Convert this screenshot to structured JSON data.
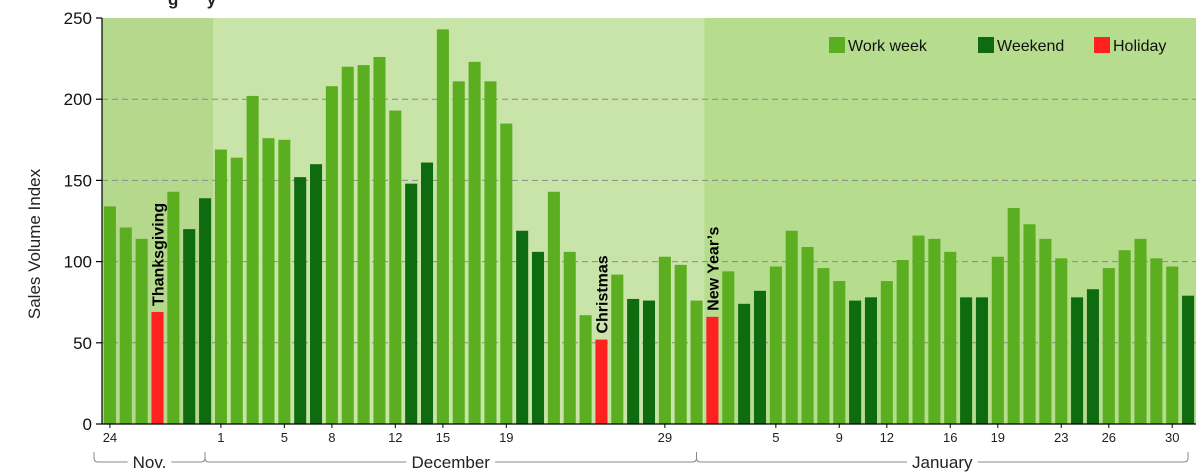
{
  "chart_data": {
    "type": "bar",
    "title": "g      y",
    "ylabel": "Sales Volume Index",
    "ylim": [
      0,
      250
    ],
    "yticks": [
      0,
      50,
      100,
      150,
      200,
      250
    ],
    "grid": "dashed horizontal",
    "legend_position": "top-right",
    "colors": {
      "work_week": "#5aae1f",
      "weekend": "#0f6b0f",
      "holiday": "#ff2020",
      "period_nov": "#b4d88c",
      "period_dec": "#c8e4a8",
      "period_jan": "#b6dc8e"
    },
    "legend": [
      {
        "key": "work_week",
        "label": "Work week"
      },
      {
        "key": "weekend",
        "label": "Weekend"
      },
      {
        "key": "holiday",
        "label": "Holiday"
      }
    ],
    "x_tick_labels": [
      {
        "label": "24",
        "day_index": 0
      },
      {
        "label": "1",
        "day_index": 7
      },
      {
        "label": "5",
        "day_index": 11
      },
      {
        "label": "8",
        "day_index": 14
      },
      {
        "label": "12",
        "day_index": 18
      },
      {
        "label": "15",
        "day_index": 21
      },
      {
        "label": "19",
        "day_index": 25
      },
      {
        "label": "29",
        "day_index": 35
      },
      {
        "label": "5",
        "day_index": 42
      },
      {
        "label": "9",
        "day_index": 46
      },
      {
        "label": "12",
        "day_index": 49
      },
      {
        "label": "16",
        "day_index": 53
      },
      {
        "label": "19",
        "day_index": 56
      },
      {
        "label": "23",
        "day_index": 60
      },
      {
        "label": "26",
        "day_index": 63
      },
      {
        "label": "30",
        "day_index": 67
      }
    ],
    "periods": [
      {
        "label": "Nov.",
        "start_index": 0,
        "end_index": 6,
        "color_key": "period_nov"
      },
      {
        "label": "December",
        "start_index": 7,
        "end_index": 37,
        "color_key": "period_dec"
      },
      {
        "label": "January",
        "start_index": 38,
        "end_index": 68,
        "color_key": "period_jan"
      }
    ],
    "annotations": [
      {
        "label": "Thanksgiving",
        "day_index": 3
      },
      {
        "label": "Christmas",
        "day_index": 31
      },
      {
        "label": "New Year’s",
        "day_index": 38
      }
    ],
    "bars": [
      {
        "value": 134,
        "kind": "work_week"
      },
      {
        "value": 121,
        "kind": "work_week"
      },
      {
        "value": 114,
        "kind": "work_week"
      },
      {
        "value": 69,
        "kind": "holiday"
      },
      {
        "value": 143,
        "kind": "work_week"
      },
      {
        "value": 120,
        "kind": "weekend"
      },
      {
        "value": 139,
        "kind": "weekend"
      },
      {
        "value": 169,
        "kind": "work_week"
      },
      {
        "value": 164,
        "kind": "work_week"
      },
      {
        "value": 202,
        "kind": "work_week"
      },
      {
        "value": 176,
        "kind": "work_week"
      },
      {
        "value": 175,
        "kind": "work_week"
      },
      {
        "value": 152,
        "kind": "weekend"
      },
      {
        "value": 160,
        "kind": "weekend"
      },
      {
        "value": 208,
        "kind": "work_week"
      },
      {
        "value": 220,
        "kind": "work_week"
      },
      {
        "value": 221,
        "kind": "work_week"
      },
      {
        "value": 226,
        "kind": "work_week"
      },
      {
        "value": 193,
        "kind": "work_week"
      },
      {
        "value": 148,
        "kind": "weekend"
      },
      {
        "value": 161,
        "kind": "weekend"
      },
      {
        "value": 243,
        "kind": "work_week"
      },
      {
        "value": 211,
        "kind": "work_week"
      },
      {
        "value": 223,
        "kind": "work_week"
      },
      {
        "value": 211,
        "kind": "work_week"
      },
      {
        "value": 185,
        "kind": "work_week"
      },
      {
        "value": 119,
        "kind": "weekend"
      },
      {
        "value": 106,
        "kind": "weekend"
      },
      {
        "value": 143,
        "kind": "work_week"
      },
      {
        "value": 106,
        "kind": "work_week"
      },
      {
        "value": 67,
        "kind": "work_week"
      },
      {
        "value": 52,
        "kind": "holiday"
      },
      {
        "value": 92,
        "kind": "work_week"
      },
      {
        "value": 77,
        "kind": "weekend"
      },
      {
        "value": 76,
        "kind": "weekend"
      },
      {
        "value": 103,
        "kind": "work_week"
      },
      {
        "value": 98,
        "kind": "work_week"
      },
      {
        "value": 76,
        "kind": "work_week"
      },
      {
        "value": 66,
        "kind": "holiday"
      },
      {
        "value": 94,
        "kind": "work_week"
      },
      {
        "value": 74,
        "kind": "weekend"
      },
      {
        "value": 82,
        "kind": "weekend"
      },
      {
        "value": 97,
        "kind": "work_week"
      },
      {
        "value": 119,
        "kind": "work_week"
      },
      {
        "value": 109,
        "kind": "work_week"
      },
      {
        "value": 96,
        "kind": "work_week"
      },
      {
        "value": 88,
        "kind": "work_week"
      },
      {
        "value": 76,
        "kind": "weekend"
      },
      {
        "value": 78,
        "kind": "weekend"
      },
      {
        "value": 88,
        "kind": "work_week"
      },
      {
        "value": 101,
        "kind": "work_week"
      },
      {
        "value": 116,
        "kind": "work_week"
      },
      {
        "value": 114,
        "kind": "work_week"
      },
      {
        "value": 106,
        "kind": "work_week"
      },
      {
        "value": 78,
        "kind": "weekend"
      },
      {
        "value": 78,
        "kind": "weekend"
      },
      {
        "value": 103,
        "kind": "work_week"
      },
      {
        "value": 133,
        "kind": "work_week"
      },
      {
        "value": 123,
        "kind": "work_week"
      },
      {
        "value": 114,
        "kind": "work_week"
      },
      {
        "value": 102,
        "kind": "work_week"
      },
      {
        "value": 78,
        "kind": "weekend"
      },
      {
        "value": 83,
        "kind": "weekend"
      },
      {
        "value": 96,
        "kind": "work_week"
      },
      {
        "value": 107,
        "kind": "work_week"
      },
      {
        "value": 114,
        "kind": "work_week"
      },
      {
        "value": 102,
        "kind": "work_week"
      },
      {
        "value": 97,
        "kind": "work_week"
      },
      {
        "value": 79,
        "kind": "weekend"
      }
    ]
  }
}
